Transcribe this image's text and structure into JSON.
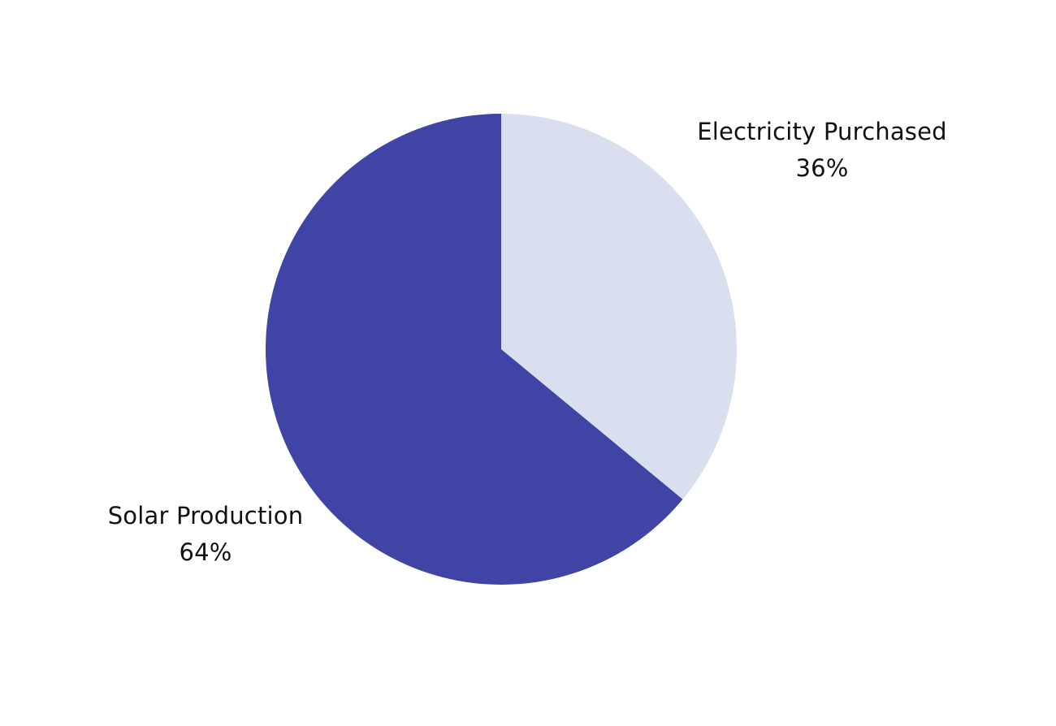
{
  "chart_data": {
    "type": "pie",
    "categories": [
      "Electricity Purchased",
      "Solar Production"
    ],
    "values": [
      36,
      64
    ],
    "value_labels": [
      "36%",
      "64%"
    ],
    "colors": [
      "#d9dfee",
      "#4045a5"
    ],
    "title": "",
    "legend": "none",
    "start_angle": "12 o'clock",
    "direction": "clockwise"
  }
}
